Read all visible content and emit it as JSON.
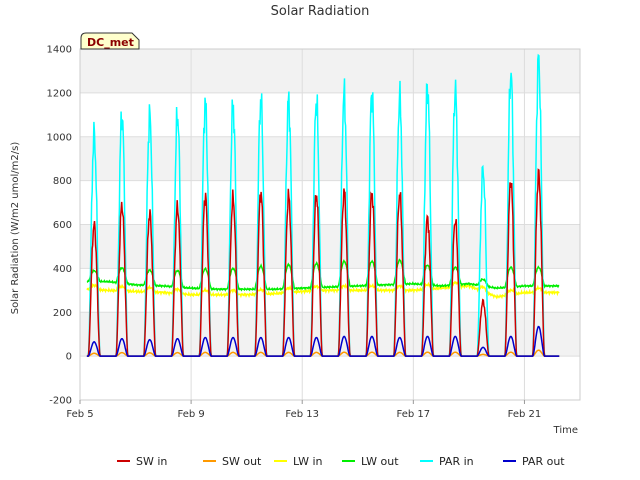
{
  "chart_data": {
    "type": "line",
    "title": "Solar Radiation",
    "xlabel": "Time",
    "ylabel": "Solar Radiation (W/m2 umol/m2/s)",
    "station_badge": "DC_met",
    "ylim": [
      -200,
      1400
    ],
    "yticks": [
      -200,
      0,
      200,
      400,
      600,
      800,
      1000,
      1200,
      1400
    ],
    "xlim_days": [
      5,
      23
    ],
    "xticks": [
      {
        "day": 5,
        "label": "Feb 5"
      },
      {
        "day": 9,
        "label": "Feb 9"
      },
      {
        "day": 13,
        "label": "Feb 13"
      },
      {
        "day": 17,
        "label": "Feb 17"
      },
      {
        "day": 21,
        "label": "Feb 21"
      }
    ],
    "grid": true,
    "legend_position": "bottom",
    "daily_peaks": {
      "days": [
        "Feb 5",
        "Feb 6",
        "Feb 7",
        "Feb 8",
        "Feb 9",
        "Feb 10",
        "Feb 11",
        "Feb 12",
        "Feb 13",
        "Feb 14",
        "Feb 15",
        "Feb 16",
        "Feb 17",
        "Feb 18",
        "Feb 19",
        "Feb 20",
        "Feb 21",
        "Feb 22"
      ],
      "sw_in": [
        600,
        690,
        650,
        680,
        730,
        720,
        745,
        730,
        735,
        750,
        745,
        740,
        630,
        620,
        250,
        800,
        830,
        0
      ],
      "par_in": [
        1010,
        1100,
        1095,
        1100,
        1150,
        1140,
        1170,
        1165,
        1165,
        1195,
        1200,
        1180,
        1230,
        1210,
        850,
        1290,
        1355,
        0
      ],
      "par_out": [
        65,
        80,
        75,
        80,
        85,
        85,
        85,
        85,
        85,
        90,
        90,
        85,
        90,
        90,
        40,
        90,
        135,
        0
      ],
      "lw_out_peak": [
        390,
        410,
        395,
        395,
        400,
        400,
        410,
        415,
        420,
        430,
        430,
        435,
        420,
        400,
        360,
        400,
        405,
        0
      ],
      "lw_out_base": [
        340,
        340,
        325,
        320,
        310,
        305,
        305,
        305,
        310,
        315,
        320,
        325,
        330,
        320,
        330,
        310,
        320,
        0
      ],
      "lw_in_base": [
        305,
        300,
        295,
        290,
        280,
        280,
        280,
        285,
        295,
        300,
        300,
        300,
        300,
        310,
        320,
        270,
        290,
        0
      ]
    },
    "series": [
      {
        "name": "SW in",
        "color": "#cc0000"
      },
      {
        "name": "SW out",
        "color": "#ff9900"
      },
      {
        "name": "LW in",
        "color": "#ffff00"
      },
      {
        "name": "LW out",
        "color": "#00ee00"
      },
      {
        "name": "PAR in",
        "color": "#00ffff"
      },
      {
        "name": "PAR out",
        "color": "#0000cc"
      }
    ]
  }
}
